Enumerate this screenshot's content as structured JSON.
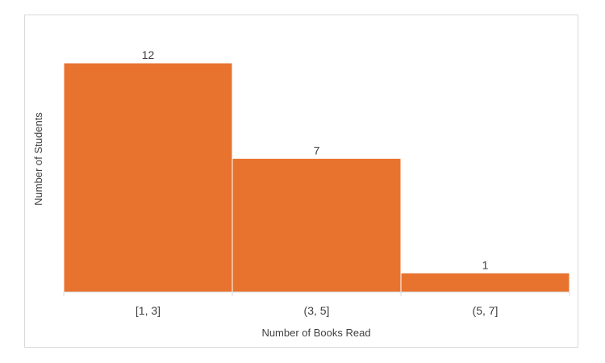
{
  "chart_data": {
    "type": "bar",
    "categories": [
      "[1, 3]",
      "(3, 5]",
      "(5, 7]"
    ],
    "values": [
      12,
      7,
      1
    ],
    "xlabel": "Number of Books Read",
    "ylabel": "Number of Students",
    "ylim": [
      0,
      12
    ],
    "grid": false,
    "legend": "none",
    "bar_color": "#E8732F",
    "data_labels": [
      "12",
      "7",
      "1"
    ]
  }
}
